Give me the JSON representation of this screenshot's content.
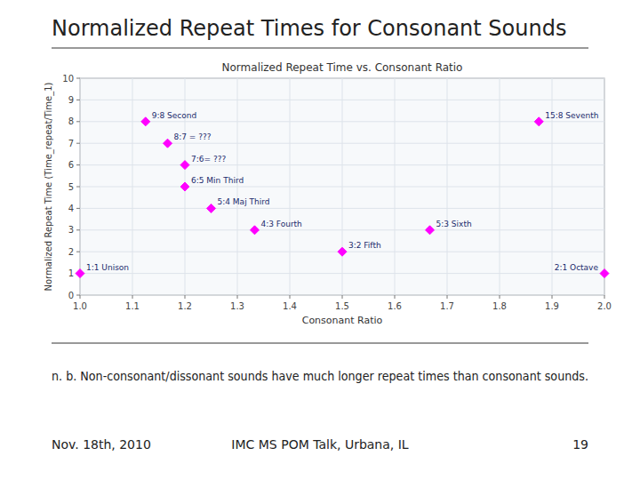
{
  "chart_data": {
    "type": "scatter",
    "title": "Normalized Repeat Times for Consonant Sounds",
    "subtitle": "Normalized Repeat Time vs. Consonant Ratio",
    "x_label": "Consonant Ratio",
    "y_label": "Normalized Repeat Time (Time_repeat/Time_1)",
    "x": [
      1.0,
      1.125,
      1.167,
      1.2,
      1.2,
      1.25,
      1.333,
      1.5,
      1.667,
      1.875,
      2.0
    ],
    "values": [
      1.0,
      8.0,
      7.0,
      6.0,
      5.0,
      4.0,
      3.0,
      2.0,
      3.0,
      8.0,
      1.0
    ],
    "labels": [
      "1:1 Unison",
      "9:8 Second",
      "8:7 = ???",
      "7:6= ???",
      "6:5 Min Third",
      "5:4 Maj Third",
      "4:3 Fourth",
      "3:2 Fifth",
      "5:3 Sixth",
      "15:8 Seventh",
      "2:1 Octave"
    ],
    "color": "#ff00ff",
    "marker": "diamond",
    "xlim": [
      1.0,
      2.0
    ],
    "ylim": [
      0,
      10
    ],
    "xticks": [
      {
        "value": 1.0,
        "label": "1.0"
      },
      1.1,
      1.2,
      1.3,
      1.4,
      1.5,
      1.6,
      1.7,
      1.8,
      1.9,
      {
        "value": 2.0,
        "label": "2.0"
      }
    ],
    "yticks": [
      0,
      1,
      2,
      3,
      4,
      5,
      6,
      7,
      8,
      9,
      10
    ],
    "grid": true,
    "annotations": [
      "n. b. Non-consonant/dissonant sounds have much longer repeat times than consonant sounds.",
      "Nov. 18th, 2010",
      "IMC MS POM Talk, Urbana, IL",
      "19"
    ]
  }
}
